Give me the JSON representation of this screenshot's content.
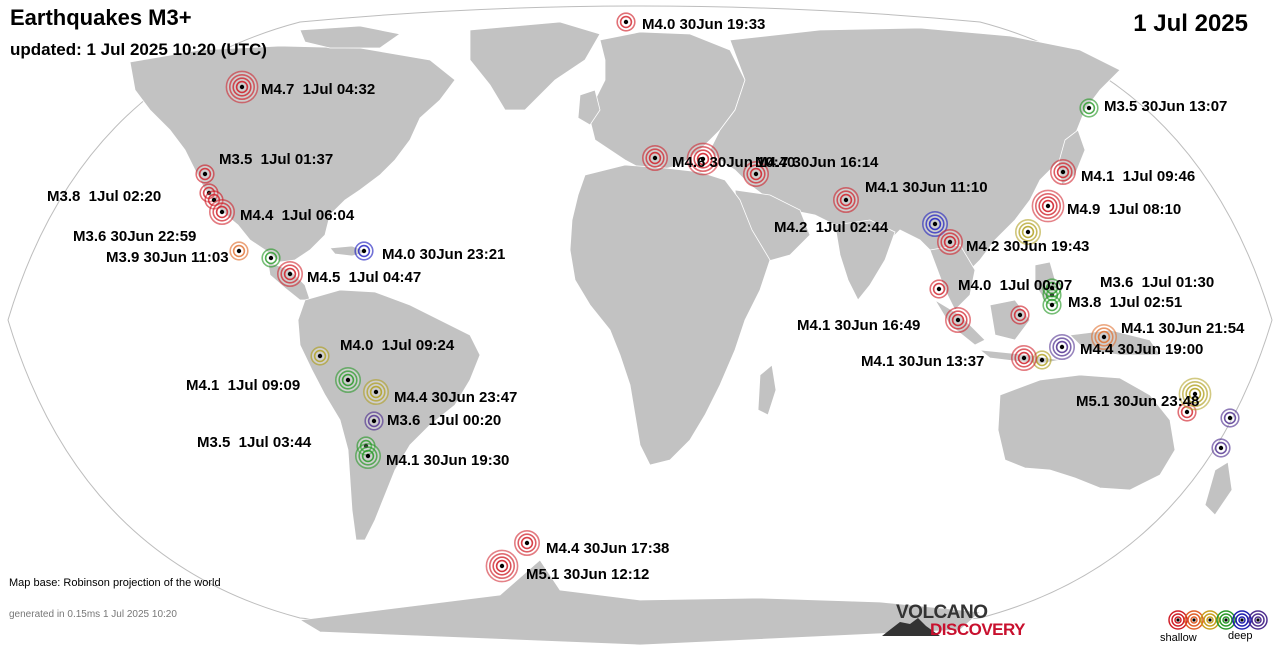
{
  "header": {
    "title": "Earthquakes M3+",
    "updated": "updated:  1 Jul 2025 10:20 (UTC)",
    "date": "1 Jul 2025"
  },
  "footer": {
    "map_base": "Map base: Robinson projection of the world",
    "generated": "generated in 0.15ms  1 Jul 2025 10:20"
  },
  "logo": {
    "top": "VOLCANO",
    "bottom": "DISCOVERY"
  },
  "legend": {
    "shallow": "shallow",
    "deep": "deep",
    "colors": [
      "#d0202a",
      "#e0602a",
      "#c8a020",
      "#2a9a2a",
      "#2020b0",
      "#503090"
    ]
  },
  "depth_colors": {
    "red": "#d0202a",
    "orange": "#e07030",
    "yellow": "#b0a020",
    "green": "#2a9a2a",
    "blue": "#2020c0",
    "purple": "#503090"
  },
  "quakes": [
    {
      "label": "M4.0 30Jun 19:33",
      "mag": 4.0,
      "depth": "red"
    },
    {
      "label": "M4.7  1Jul 04:32",
      "mag": 4.7,
      "depth": "red"
    },
    {
      "label": "M3.5 30Jun 13:07",
      "mag": 3.5,
      "depth": "green"
    },
    {
      "label": "M3.5  1Jul 01:37",
      "mag": 3.5,
      "depth": "red"
    },
    {
      "label": "M3.8  1Jul 02:20",
      "mag": 3.8,
      "depth": "red"
    },
    {
      "label": "M4.4  1Jul 06:04",
      "mag": 4.4,
      "depth": "red"
    },
    {
      "label": "M3.6 30Jun 22:59",
      "mag": 3.6,
      "depth": "orange"
    },
    {
      "label": "M3.9 30Jun 11:03",
      "mag": 3.9,
      "depth": "green"
    },
    {
      "label": "M4.0 30Jun 23:21",
      "mag": 4.0,
      "depth": "blue"
    },
    {
      "label": "M4.5  1Jul 04:47",
      "mag": 4.5,
      "depth": "red"
    },
    {
      "label": "M4.6 30Jun 10:40",
      "mag": 4.6,
      "depth": "red"
    },
    {
      "label": "M4.7 30Jun 16:14",
      "mag": 4.7,
      "depth": "red"
    },
    {
      "label": "M4.1 30Jun 11:10",
      "mag": 4.1,
      "depth": "red"
    },
    {
      "label": "M4.1  1Jul 09:46",
      "mag": 4.1,
      "depth": "red"
    },
    {
      "label": "M4.9  1Jul 08:10",
      "mag": 4.9,
      "depth": "red"
    },
    {
      "label": "M4.2  1Jul 02:44",
      "mag": 4.2,
      "depth": "blue"
    },
    {
      "label": "M4.2 30Jun 19:43",
      "mag": 4.2,
      "depth": "red"
    },
    {
      "label": "M4.0  1Jul 00:07",
      "mag": 4.0,
      "depth": "red"
    },
    {
      "label": "M3.6  1Jul 01:30",
      "mag": 3.6,
      "depth": "green"
    },
    {
      "label": "M3.8  1Jul 02:51",
      "mag": 3.8,
      "depth": "green"
    },
    {
      "label": "M4.1 30Jun 16:49",
      "mag": 4.1,
      "depth": "red"
    },
    {
      "label": "M4.1 30Jun 21:54",
      "mag": 4.1,
      "depth": "orange"
    },
    {
      "label": "M4.4 30Jun 19:00",
      "mag": 4.4,
      "depth": "purple"
    },
    {
      "label": "M4.1 30Jun 13:37",
      "mag": 4.1,
      "depth": "red"
    },
    {
      "label": "M5.1 30Jun 23:48",
      "mag": 5.1,
      "depth": "yellow"
    },
    {
      "label": "M4.0  1Jul 09:24",
      "mag": 4.0,
      "depth": "yellow"
    },
    {
      "label": "M4.1  1Jul 09:09",
      "mag": 4.1,
      "depth": "green"
    },
    {
      "label": "M4.4 30Jun 23:47",
      "mag": 4.4,
      "depth": "yellow"
    },
    {
      "label": "M3.6  1Jul 00:20",
      "mag": 3.6,
      "depth": "purple"
    },
    {
      "label": "M3.5  1Jul 03:44",
      "mag": 3.5,
      "depth": "green"
    },
    {
      "label": "M4.1 30Jun 19:30",
      "mag": 4.1,
      "depth": "green"
    },
    {
      "label": "M4.4 30Jun 17:38",
      "mag": 4.4,
      "depth": "red"
    },
    {
      "label": "M5.1 30Jun 12:12",
      "mag": 5.1,
      "depth": "red"
    }
  ]
}
